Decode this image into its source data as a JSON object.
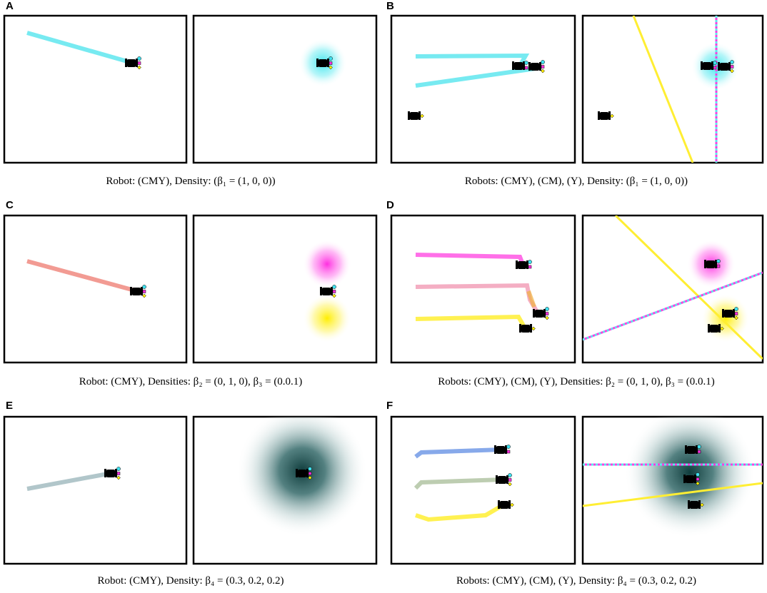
{
  "panels": [
    {
      "letter": "A",
      "caption": "Robot: (CMY), Density: (β₁ = (1, 0, 0))"
    },
    {
      "letter": "B",
      "caption": "Robots: (CMY), (CM), (Y), Density: (β₁ = (1, 0, 0))"
    },
    {
      "letter": "C",
      "caption": "Robot: (CMY), Densities: β₂ = (0, 1, 0), β₃ = (0.0.1)"
    },
    {
      "letter": "D",
      "caption": "Robots: (CMY), (CM), (Y), Densities: β₂ = (0, 1, 0), β₃ = (0.0.1)"
    },
    {
      "letter": "E",
      "caption": "Robot: (CMY), Density: β₄ = (0.3, 0.2, 0.2)"
    },
    {
      "letter": "F",
      "caption": "Robots: (CMY), (CM), (Y), Density: β₄ = (0.3, 0.2, 0.2)"
    }
  ],
  "colors": {
    "cyan": "#5fe6ee",
    "magenta": "#ff3fe0",
    "yellow": "#ffee33",
    "salmon": "#f08a80",
    "pink": "#f2a0b8",
    "steel": "#a9c0c4",
    "blue": "#7aa0e8",
    "sage": "#b6c8a8",
    "dark_density": "#1f4f4f"
  }
}
